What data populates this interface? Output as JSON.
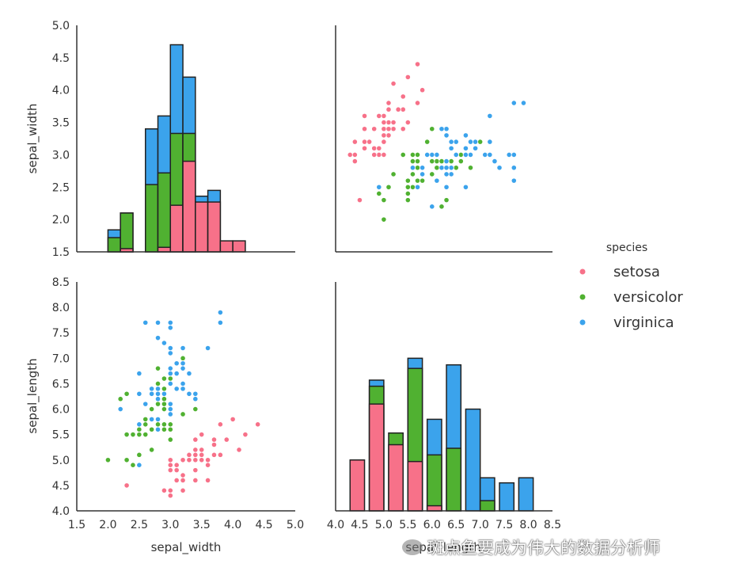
{
  "chart_data": {
    "type": "scatter",
    "kind": "pairplot",
    "variables": [
      "sepal_width",
      "sepal_length"
    ],
    "axis_labels": {
      "sepal_width": "sepal_width",
      "sepal_length": "sepal_length"
    },
    "ranges": {
      "sepal_width": [
        1.5,
        5.0
      ],
      "sepal_length": [
        4.0,
        8.5
      ]
    },
    "ticks": {
      "sepal_width": [
        "1.5",
        "2.0",
        "2.5",
        "3.0",
        "3.5",
        "4.0",
        "4.5",
        "5.0"
      ],
      "sepal_length": [
        "4.0",
        "4.5",
        "5.0",
        "5.5",
        "6.0",
        "6.5",
        "7.0",
        "7.5",
        "8.0",
        "8.5"
      ]
    },
    "grid": false,
    "legend": {
      "title": "species",
      "placement": "center-right",
      "entries": [
        {
          "name": "setosa",
          "color": "#f77189"
        },
        {
          "name": "versicolor",
          "color": "#50b131"
        },
        {
          "name": "virginica",
          "color": "#3ba3ec"
        }
      ]
    },
    "histograms": {
      "sepal_width": {
        "layers_ordered_front_to_back": [
          "setosa",
          "versicolor",
          "virginica"
        ],
        "bins": [
          {
            "x0": 2.0,
            "x1": 2.2,
            "setosa": 0.0,
            "versicolor": 1.72,
            "virginica": 1.84
          },
          {
            "x0": 2.2,
            "x1": 2.4,
            "setosa": 1.55,
            "versicolor": 2.1,
            "virginica": 2.1
          },
          {
            "x0": 2.6,
            "x1": 2.8,
            "setosa": 0.0,
            "versicolor": 2.54,
            "virginica": 3.4
          },
          {
            "x0": 2.8,
            "x1": 3.0,
            "setosa": 1.57,
            "versicolor": 2.72,
            "virginica": 3.6
          },
          {
            "x0": 3.0,
            "x1": 3.2,
            "setosa": 2.22,
            "versicolor": 3.33,
            "virginica": 4.7
          },
          {
            "x0": 3.2,
            "x1": 3.4,
            "setosa": 2.9,
            "versicolor": 3.33,
            "virginica": 4.2
          },
          {
            "x0": 3.4,
            "x1": 3.6,
            "setosa": 2.27,
            "versicolor": 0.0,
            "virginica": 2.36
          },
          {
            "x0": 3.6,
            "x1": 3.8,
            "setosa": 2.27,
            "versicolor": 0.0,
            "virginica": 2.45
          },
          {
            "x0": 3.8,
            "x1": 4.0,
            "setosa": 1.67,
            "versicolor": 0.0,
            "virginica": 0.0
          },
          {
            "x0": 4.0,
            "x1": 4.2,
            "setosa": 1.67,
            "versicolor": 0.0,
            "virginica": 0.0
          }
        ]
      },
      "sepal_length": {
        "layers_ordered_front_to_back": [
          "setosa",
          "versicolor",
          "virginica"
        ],
        "bins": [
          {
            "x0": 4.3,
            "x1": 4.6,
            "setosa": 5.0,
            "versicolor": 0.0,
            "virginica": 0.0
          },
          {
            "x0": 4.7,
            "x1": 5.0,
            "setosa": 6.1,
            "versicolor": 6.45,
            "virginica": 6.57
          },
          {
            "x0": 5.1,
            "x1": 5.4,
            "setosa": 5.3,
            "versicolor": 5.53,
            "virginica": 0.0
          },
          {
            "x0": 5.5,
            "x1": 5.8,
            "setosa": 4.97,
            "versicolor": 6.8,
            "virginica": 7.0
          },
          {
            "x0": 5.9,
            "x1": 6.2,
            "setosa": 4.1,
            "versicolor": 5.1,
            "virginica": 5.8
          },
          {
            "x0": 6.3,
            "x1": 6.6,
            "setosa": 0.0,
            "versicolor": 5.23,
            "virginica": 6.87
          },
          {
            "x0": 6.7,
            "x1": 7.0,
            "setosa": 0.0,
            "versicolor": 0.0,
            "virginica": 6.0
          },
          {
            "x0": 7.0,
            "x1": 7.3,
            "setosa": 0.0,
            "versicolor": 4.2,
            "virginica": 4.65
          },
          {
            "x0": 7.4,
            "x1": 7.7,
            "setosa": 0.0,
            "versicolor": 0.0,
            "virginica": 4.55
          },
          {
            "x0": 7.8,
            "x1": 8.1,
            "setosa": 0.0,
            "versicolor": 0.0,
            "virginica": 4.65
          }
        ]
      }
    },
    "points": {
      "setosa": [
        [
          3.5,
          5.1
        ],
        [
          3.0,
          4.9
        ],
        [
          3.2,
          4.7
        ],
        [
          3.1,
          4.6
        ],
        [
          3.6,
          5.0
        ],
        [
          3.9,
          5.4
        ],
        [
          3.4,
          4.6
        ],
        [
          3.4,
          5.0
        ],
        [
          2.9,
          4.4
        ],
        [
          3.1,
          4.9
        ],
        [
          3.7,
          5.4
        ],
        [
          3.4,
          4.8
        ],
        [
          3.0,
          4.8
        ],
        [
          3.0,
          4.3
        ],
        [
          4.0,
          5.8
        ],
        [
          4.4,
          5.7
        ],
        [
          3.9,
          5.4
        ],
        [
          3.5,
          5.1
        ],
        [
          3.8,
          5.7
        ],
        [
          3.8,
          5.1
        ],
        [
          3.4,
          5.4
        ],
        [
          3.7,
          5.1
        ],
        [
          3.6,
          4.6
        ],
        [
          3.3,
          5.1
        ],
        [
          3.4,
          4.8
        ],
        [
          3.0,
          5.0
        ],
        [
          3.4,
          5.0
        ],
        [
          3.5,
          5.2
        ],
        [
          3.4,
          5.2
        ],
        [
          3.2,
          4.7
        ],
        [
          3.1,
          4.8
        ],
        [
          3.4,
          5.4
        ],
        [
          4.1,
          5.2
        ],
        [
          4.2,
          5.5
        ],
        [
          3.1,
          4.9
        ],
        [
          3.2,
          5.0
        ],
        [
          3.5,
          5.5
        ],
        [
          3.6,
          4.9
        ],
        [
          3.0,
          4.4
        ],
        [
          3.4,
          5.1
        ],
        [
          3.5,
          5.0
        ],
        [
          2.3,
          4.5
        ],
        [
          3.2,
          4.4
        ],
        [
          3.5,
          5.0
        ],
        [
          3.8,
          5.1
        ],
        [
          3.0,
          4.8
        ],
        [
          3.8,
          5.1
        ],
        [
          3.2,
          4.6
        ],
        [
          3.7,
          5.3
        ],
        [
          3.3,
          5.0
        ]
      ],
      "versicolor": [
        [
          3.2,
          7.0
        ],
        [
          3.2,
          6.4
        ],
        [
          3.1,
          6.9
        ],
        [
          2.3,
          5.5
        ],
        [
          2.8,
          6.5
        ],
        [
          2.8,
          5.7
        ],
        [
          3.3,
          6.3
        ],
        [
          2.4,
          4.9
        ],
        [
          2.9,
          6.6
        ],
        [
          2.7,
          5.2
        ],
        [
          2.0,
          5.0
        ],
        [
          3.0,
          5.9
        ],
        [
          2.2,
          6.0
        ],
        [
          2.9,
          6.1
        ],
        [
          2.9,
          5.6
        ],
        [
          3.1,
          6.7
        ],
        [
          3.0,
          5.6
        ],
        [
          2.7,
          5.8
        ],
        [
          2.2,
          6.2
        ],
        [
          2.5,
          5.6
        ],
        [
          3.2,
          5.9
        ],
        [
          2.8,
          6.1
        ],
        [
          2.5,
          6.3
        ],
        [
          2.8,
          6.1
        ],
        [
          2.9,
          6.4
        ],
        [
          3.0,
          6.6
        ],
        [
          2.8,
          6.8
        ],
        [
          3.0,
          6.7
        ],
        [
          2.9,
          6.0
        ],
        [
          2.6,
          5.7
        ],
        [
          2.4,
          5.5
        ],
        [
          2.4,
          5.5
        ],
        [
          2.7,
          5.8
        ],
        [
          2.7,
          6.0
        ],
        [
          3.0,
          5.4
        ],
        [
          3.4,
          6.0
        ],
        [
          3.1,
          6.7
        ],
        [
          2.3,
          6.3
        ],
        [
          3.0,
          5.6
        ],
        [
          2.5,
          5.5
        ],
        [
          2.6,
          5.5
        ],
        [
          3.0,
          6.1
        ],
        [
          2.6,
          5.8
        ],
        [
          2.3,
          5.0
        ],
        [
          2.7,
          5.6
        ],
        [
          3.0,
          5.7
        ],
        [
          2.9,
          5.7
        ],
        [
          2.9,
          6.2
        ],
        [
          2.5,
          5.1
        ],
        [
          2.8,
          5.7
        ]
      ],
      "virginica": [
        [
          3.3,
          6.3
        ],
        [
          2.7,
          5.8
        ],
        [
          3.0,
          7.1
        ],
        [
          2.9,
          6.3
        ],
        [
          3.0,
          6.5
        ],
        [
          3.0,
          7.6
        ],
        [
          2.5,
          4.9
        ],
        [
          2.9,
          7.3
        ],
        [
          2.5,
          6.7
        ],
        [
          3.6,
          7.2
        ],
        [
          3.2,
          6.5
        ],
        [
          2.7,
          6.4
        ],
        [
          3.0,
          6.8
        ],
        [
          2.5,
          5.7
        ],
        [
          2.8,
          5.8
        ],
        [
          3.2,
          6.4
        ],
        [
          3.0,
          6.5
        ],
        [
          3.8,
          7.7
        ],
        [
          2.6,
          7.7
        ],
        [
          2.2,
          6.0
        ],
        [
          3.2,
          6.9
        ],
        [
          2.8,
          5.6
        ],
        [
          2.8,
          7.7
        ],
        [
          2.7,
          6.3
        ],
        [
          3.3,
          6.7
        ],
        [
          3.2,
          7.2
        ],
        [
          2.8,
          6.2
        ],
        [
          3.0,
          6.1
        ],
        [
          2.8,
          6.4
        ],
        [
          3.0,
          7.2
        ],
        [
          2.8,
          7.4
        ],
        [
          3.8,
          7.9
        ],
        [
          2.8,
          6.4
        ],
        [
          2.8,
          6.3
        ],
        [
          2.6,
          6.1
        ],
        [
          3.0,
          7.7
        ],
        [
          3.4,
          6.3
        ],
        [
          3.1,
          6.4
        ],
        [
          3.0,
          6.0
        ],
        [
          3.1,
          6.9
        ],
        [
          3.1,
          6.7
        ],
        [
          3.1,
          6.9
        ],
        [
          2.7,
          5.8
        ],
        [
          3.2,
          6.8
        ],
        [
          3.3,
          6.7
        ],
        [
          3.0,
          6.7
        ],
        [
          2.5,
          6.3
        ],
        [
          3.0,
          6.5
        ],
        [
          3.4,
          6.2
        ],
        [
          3.0,
          5.9
        ]
      ]
    }
  },
  "watermark": {
    "text": "斑点鱼要成为伟大的数据分析师"
  }
}
